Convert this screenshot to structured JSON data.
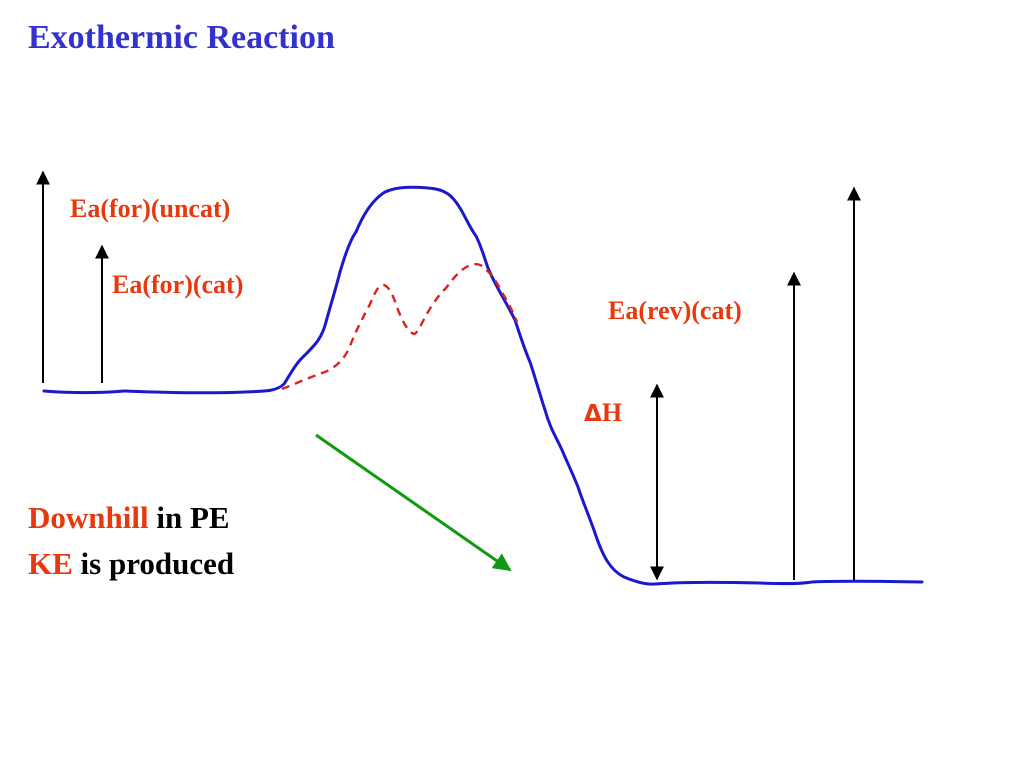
{
  "title": "Exothermic Reaction",
  "labels": {
    "ea_for_uncat": "Ea(for)(uncat)",
    "ea_for_cat": "Ea(for)(cat)",
    "ea_rev_cat": "Ea(rev)(cat)",
    "delta_symbol": "Δ",
    "delta_h": "H"
  },
  "caption": {
    "line1_highlight": "Downhill",
    "line1_rest": " in PE",
    "line2_highlight": "KE",
    "line2_rest": " is produced"
  },
  "colors": {
    "title": "#3333cc",
    "label": "#e8380d",
    "caption_text": "#000000",
    "uncatalyzed_curve": "#1a1acc",
    "catalyzed_curve": "#e0201a",
    "trend_arrow": "#119911",
    "energy_arrows": "#000000"
  }
}
